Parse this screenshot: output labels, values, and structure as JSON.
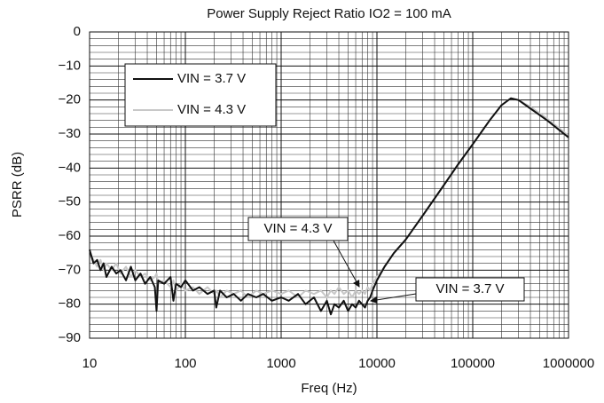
{
  "chart_data": {
    "type": "line",
    "title": "Power Supply Reject Ratio IO2 = 100 mA",
    "x_label": "Freq (Hz)",
    "y_label": "PSRR (dB)",
    "log_x": true,
    "grid": true,
    "minor_grid": true,
    "legend": "upper-left",
    "xlim": [
      10,
      1000000
    ],
    "xticks": [
      10,
      100,
      1000,
      10000,
      100000,
      1000000
    ],
    "ylim": [
      -90,
      0
    ],
    "yticks": [
      0,
      {
        "value": -10,
        "label": "−10"
      },
      {
        "value": -20,
        "label": "−20"
      },
      {
        "value": -30,
        "label": "−30"
      },
      {
        "value": -40,
        "label": "−40"
      },
      {
        "value": -50,
        "label": "−50"
      },
      {
        "value": -60,
        "label": "−60"
      },
      {
        "value": -70,
        "label": "−70"
      },
      {
        "value": -80,
        "label": "−80"
      },
      {
        "value": -90,
        "label": "−90"
      }
    ],
    "x": [
      10,
      11,
      12,
      13,
      14,
      15,
      17,
      19,
      21,
      24,
      27,
      30,
      34,
      38,
      43,
      48,
      50,
      52,
      60,
      70,
      75,
      80,
      90,
      100,
      120,
      140,
      170,
      200,
      210,
      230,
      270,
      320,
      380,
      450,
      550,
      650,
      800,
      1000,
      1200,
      1500,
      1800,
      2200,
      2600,
      3000,
      3300,
      3600,
      4000,
      4500,
      5000,
      5500,
      6000,
      6500,
      7000,
      7500,
      8000,
      8500,
      9000,
      10000,
      12000,
      15000,
      20000,
      30000,
      50000,
      70000,
      100000,
      150000,
      200000,
      250000,
      300000,
      400000,
      600000,
      1000000
    ],
    "series": [
      {
        "name": "VIN = 4.3 V",
        "color": "#c8c8c8",
        "values": [
          -65,
          -67,
          -69,
          -67,
          -70,
          -68,
          -70,
          -68,
          -71,
          -69,
          -72,
          -70,
          -72,
          -71,
          -73,
          -72,
          -71,
          -74,
          -73,
          -75,
          -73,
          -76,
          -74,
          -76,
          -75,
          -77,
          -75,
          -77,
          -76,
          -78,
          -76,
          -77,
          -76,
          -78,
          -76,
          -77,
          -76,
          -77,
          -76,
          -78,
          -76,
          -77,
          -76,
          -78,
          -76,
          -77,
          -75,
          -77,
          -76,
          -78,
          -76,
          -77,
          -76,
          -77,
          -75,
          -76,
          -74,
          -72,
          -69,
          -65,
          -61,
          -54,
          -45,
          -39,
          -33,
          -26,
          -21.5,
          -19.5,
          -20,
          -22,
          -25.5,
          -30.5
        ]
      },
      {
        "name": "VIN = 3.7 V",
        "color": "#111111",
        "values": [
          -64,
          -68,
          -67,
          -70,
          -68,
          -72,
          -69,
          -71,
          -70,
          -73,
          -69,
          -73,
          -71,
          -74,
          -72,
          -75,
          -82,
          -73,
          -74,
          -72,
          -79,
          -74,
          -75,
          -73,
          -76,
          -75,
          -77,
          -76,
          -81,
          -76,
          -78,
          -77,
          -79,
          -77,
          -78,
          -77,
          -79,
          -78,
          -79,
          -77,
          -80,
          -78,
          -82,
          -79,
          -83,
          -80,
          -81,
          -79,
          -82,
          -80,
          -81,
          -79,
          -80,
          -81,
          -79,
          -78,
          -76,
          -73,
          -69,
          -65,
          -61,
          -54,
          -45,
          -39,
          -33,
          -26,
          -21.5,
          -19.5,
          -20,
          -22.5,
          -26,
          -31
        ]
      }
    ],
    "annotations": [
      {
        "text": "VIN = 4.3 V"
      },
      {
        "text": "VIN = 3.7 V"
      }
    ]
  }
}
